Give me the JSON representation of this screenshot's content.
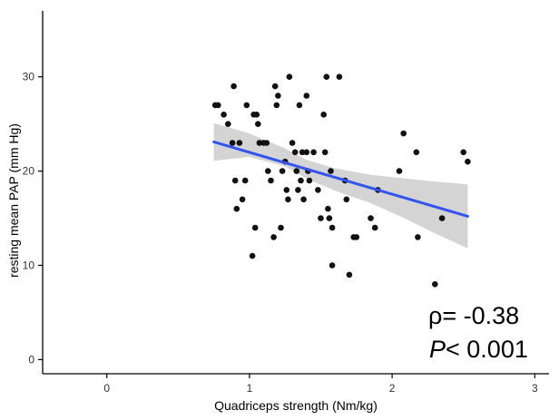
{
  "chart_data": {
    "type": "scatter",
    "title": "",
    "xlabel": "Quadriceps strength (Nm/kg)",
    "ylabel": "resting mean PAP (mm Hg)",
    "xlim": [
      -0.45,
      3.1
    ],
    "ylim": [
      -1.5,
      37
    ],
    "xticks": [
      0,
      1,
      2,
      3
    ],
    "yticks": [
      0,
      10,
      20,
      30
    ],
    "grid": false,
    "annotation": {
      "rho": "ρ= -0.38",
      "p_symbol": "P",
      "p_value": "< 0.001"
    },
    "colors": {
      "points": "#111111",
      "fit_line": "#3355ee",
      "confidence_band": "#cccccc"
    },
    "fit": {
      "x_start": 0.75,
      "y_start": 23.1,
      "x_end": 2.53,
      "y_end": 15.2
    },
    "band": {
      "x": [
        0.75,
        1.0,
        1.25,
        1.4,
        1.6,
        1.85,
        2.1,
        2.3,
        2.53
      ],
      "upper": [
        25.1,
        24.0,
        22.4,
        21.2,
        20.3,
        19.6,
        19.2,
        18.9,
        18.6
      ],
      "lower": [
        21.1,
        21.5,
        20.5,
        19.2,
        17.9,
        16.6,
        14.9,
        13.4,
        11.8
      ]
    },
    "points": [
      {
        "x": 0.76,
        "y": 27
      },
      {
        "x": 0.78,
        "y": 27
      },
      {
        "x": 0.82,
        "y": 26
      },
      {
        "x": 0.85,
        "y": 25
      },
      {
        "x": 0.88,
        "y": 23
      },
      {
        "x": 0.89,
        "y": 29
      },
      {
        "x": 0.9,
        "y": 19
      },
      {
        "x": 0.91,
        "y": 16
      },
      {
        "x": 0.93,
        "y": 23
      },
      {
        "x": 0.95,
        "y": 17
      },
      {
        "x": 0.97,
        "y": 19
      },
      {
        "x": 0.98,
        "y": 27
      },
      {
        "x": 1.02,
        "y": 11
      },
      {
        "x": 1.03,
        "y": 26
      },
      {
        "x": 1.04,
        "y": 14
      },
      {
        "x": 1.05,
        "y": 26
      },
      {
        "x": 1.06,
        "y": 25
      },
      {
        "x": 1.07,
        "y": 23
      },
      {
        "x": 1.1,
        "y": 23
      },
      {
        "x": 1.12,
        "y": 23
      },
      {
        "x": 1.13,
        "y": 20
      },
      {
        "x": 1.15,
        "y": 19
      },
      {
        "x": 1.17,
        "y": 13
      },
      {
        "x": 1.18,
        "y": 29
      },
      {
        "x": 1.19,
        "y": 27
      },
      {
        "x": 1.2,
        "y": 28
      },
      {
        "x": 1.22,
        "y": 14
      },
      {
        "x": 1.23,
        "y": 20
      },
      {
        "x": 1.25,
        "y": 21
      },
      {
        "x": 1.26,
        "y": 18
      },
      {
        "x": 1.27,
        "y": 17
      },
      {
        "x": 1.28,
        "y": 30
      },
      {
        "x": 1.3,
        "y": 23
      },
      {
        "x": 1.32,
        "y": 22
      },
      {
        "x": 1.33,
        "y": 20
      },
      {
        "x": 1.34,
        "y": 18
      },
      {
        "x": 1.35,
        "y": 27
      },
      {
        "x": 1.36,
        "y": 19
      },
      {
        "x": 1.37,
        "y": 22
      },
      {
        "x": 1.38,
        "y": 17
      },
      {
        "x": 1.4,
        "y": 28
      },
      {
        "x": 1.4,
        "y": 22
      },
      {
        "x": 1.41,
        "y": 20
      },
      {
        "x": 1.42,
        "y": 19
      },
      {
        "x": 1.45,
        "y": 22
      },
      {
        "x": 1.48,
        "y": 18
      },
      {
        "x": 1.5,
        "y": 15
      },
      {
        "x": 1.52,
        "y": 26
      },
      {
        "x": 1.53,
        "y": 22
      },
      {
        "x": 1.54,
        "y": 30
      },
      {
        "x": 1.55,
        "y": 16
      },
      {
        "x": 1.56,
        "y": 15
      },
      {
        "x": 1.57,
        "y": 20
      },
      {
        "x": 1.58,
        "y": 14
      },
      {
        "x": 1.58,
        "y": 10
      },
      {
        "x": 1.63,
        "y": 30
      },
      {
        "x": 1.67,
        "y": 19
      },
      {
        "x": 1.68,
        "y": 17
      },
      {
        "x": 1.7,
        "y": 9
      },
      {
        "x": 1.73,
        "y": 13
      },
      {
        "x": 1.75,
        "y": 13
      },
      {
        "x": 1.85,
        "y": 15
      },
      {
        "x": 1.88,
        "y": 14
      },
      {
        "x": 1.9,
        "y": 18
      },
      {
        "x": 2.05,
        "y": 20
      },
      {
        "x": 2.08,
        "y": 24
      },
      {
        "x": 2.17,
        "y": 22
      },
      {
        "x": 2.18,
        "y": 13
      },
      {
        "x": 2.3,
        "y": 8
      },
      {
        "x": 2.35,
        "y": 15
      },
      {
        "x": 2.5,
        "y": 22
      },
      {
        "x": 2.53,
        "y": 21
      }
    ]
  }
}
